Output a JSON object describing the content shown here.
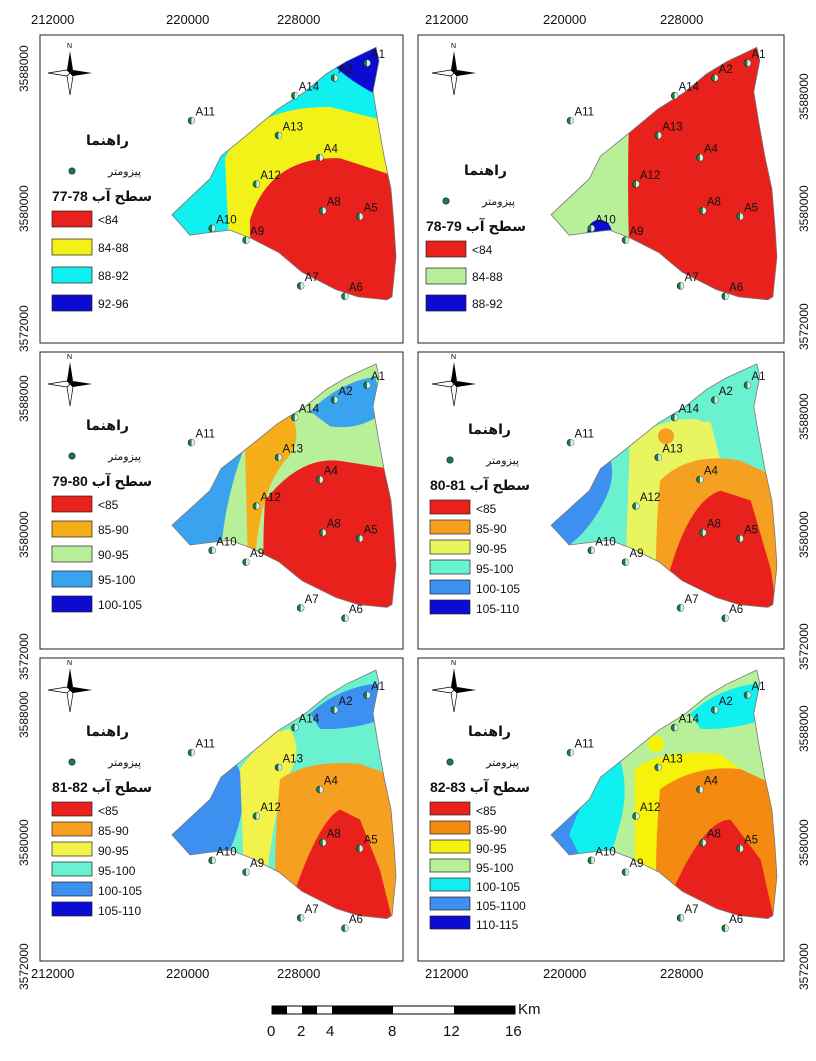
{
  "axes": {
    "x_ticks": [
      "212000",
      "220000",
      "228000"
    ],
    "y_ticks": [
      "3588000",
      "3580000",
      "3572000"
    ]
  },
  "legend_heading": "راهنما",
  "piezometer_label": "پیزومتر",
  "north_label": "N",
  "wells": [
    {
      "id": "A1",
      "x": 232000,
      "y": 3588600
    },
    {
      "id": "A2",
      "x": 229800,
      "y": 3587600
    },
    {
      "id": "A14",
      "x": 227100,
      "y": 3586400
    },
    {
      "id": "A11",
      "x": 220100,
      "y": 3584700
    },
    {
      "id": "A13",
      "x": 226000,
      "y": 3583700
    },
    {
      "id": "A4",
      "x": 228800,
      "y": 3582200
    },
    {
      "id": "A12",
      "x": 224500,
      "y": 3580400
    },
    {
      "id": "A8",
      "x": 229000,
      "y": 3578600
    },
    {
      "id": "A5",
      "x": 231500,
      "y": 3578200
    },
    {
      "id": "A10",
      "x": 221500,
      "y": 3577400
    },
    {
      "id": "A9",
      "x": 223800,
      "y": 3576600
    },
    {
      "id": "A7",
      "x": 227500,
      "y": 3573500
    },
    {
      "id": "A6",
      "x": 230500,
      "y": 3572800
    }
  ],
  "panels": [
    {
      "title": "سطح آب 78-77",
      "classes": [
        {
          "label": "<84",
          "color": "#e8211d"
        },
        {
          "label": "84-88",
          "color": "#f2f218"
        },
        {
          "label": "88-92",
          "color": "#10f0f0"
        },
        {
          "label": "92-96",
          "color": "#0b0bd2"
        }
      ]
    },
    {
      "title": "سطح آب 79-78",
      "classes": [
        {
          "label": "<84",
          "color": "#e8211d"
        },
        {
          "label": "84-88",
          "color": "#b8f09a"
        },
        {
          "label": "88-92",
          "color": "#0b0bd2"
        }
      ]
    },
    {
      "title": "سطح آب 80-79",
      "classes": [
        {
          "label": "<85",
          "color": "#e8211d"
        },
        {
          "label": "85-90",
          "color": "#f5ad1a"
        },
        {
          "label": "90-95",
          "color": "#b8f09a"
        },
        {
          "label": "95-100",
          "color": "#3aa3f0"
        },
        {
          "label": "100-105",
          "color": "#0b0bd2"
        }
      ]
    },
    {
      "title": "سطح آب 81-80",
      "classes": [
        {
          "label": "<85",
          "color": "#e8211d"
        },
        {
          "label": "85-90",
          "color": "#f5a020"
        },
        {
          "label": "90-95",
          "color": "#e8f560"
        },
        {
          "label": "95-100",
          "color": "#6af2d0"
        },
        {
          "label": "100-105",
          "color": "#3d8ff0"
        },
        {
          "label": "105-110",
          "color": "#0b0bd2"
        }
      ]
    },
    {
      "title": "سطح آب 82-81",
      "classes": [
        {
          "label": "<85",
          "color": "#e8211d"
        },
        {
          "label": "85-90",
          "color": "#f5a020"
        },
        {
          "label": "90-95",
          "color": "#f2f24a"
        },
        {
          "label": "95-100",
          "color": "#6af2d0"
        },
        {
          "label": "100-105",
          "color": "#3d8ff0"
        },
        {
          "label": "105-110",
          "color": "#0b0bd2"
        }
      ]
    },
    {
      "title": "سطح آب 83-82",
      "classes": [
        {
          "label": "<85",
          "color": "#e8211d"
        },
        {
          "label": "85-90",
          "color": "#f58a10"
        },
        {
          "label": "90-95",
          "color": "#f7f20a"
        },
        {
          "label": "95-100",
          "color": "#b8f09a"
        },
        {
          "label": "100-105",
          "color": "#10f0f0"
        },
        {
          "label": "105-1100",
          "color": "#3d8ff0"
        },
        {
          "label": "110-115",
          "color": "#0b0bd2"
        }
      ]
    }
  ],
  "scale_bar": {
    "labels": [
      "0",
      "2",
      "4",
      "8",
      "12",
      "16"
    ],
    "unit": "Km"
  }
}
